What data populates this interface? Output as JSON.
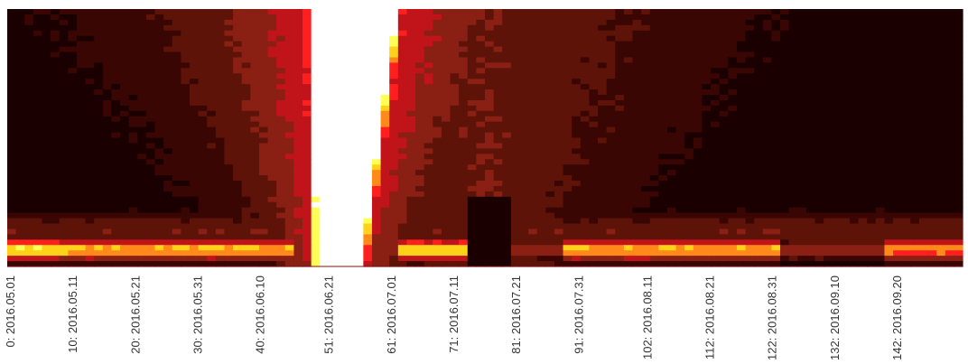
{
  "chart_data": {
    "type": "heatmap",
    "title": "",
    "xlabel": "",
    "ylabel": "",
    "colormap": [
      "#1a0000",
      "#3a0604",
      "#5e1308",
      "#8a1f14",
      "#c0141a",
      "#ff1f1f",
      "#ff8a1a",
      "#ffd21a",
      "#ffff55",
      "#ffffff"
    ],
    "n_days": 153,
    "tick_labels": [
      "0: 2016.05.01",
      "10: 2016.05.11",
      "20: 2016.05.21",
      "30: 2016.05.31",
      "40: 2016.06.10",
      "51: 2016.06.21",
      "61: 2016.07.01",
      "71: 2016.07.11",
      "81: 2016.07.21",
      "91: 2016.07.31",
      "102: 2016.08.11",
      "112: 2016.08.21",
      "122: 2016.08.31",
      "132: 2016.09.10",
      "142: 2016.09.20"
    ],
    "grid": false,
    "legend": "none"
  }
}
